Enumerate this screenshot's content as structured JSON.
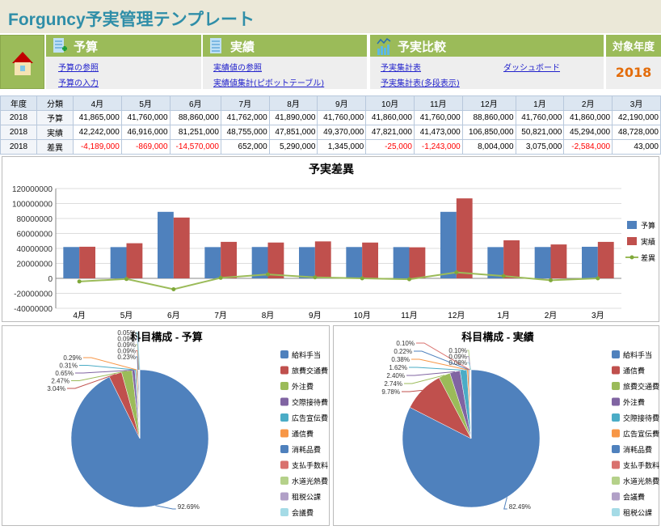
{
  "title": "Forguncy予実管理テンプレート",
  "nav": {
    "budget": {
      "title": "予算",
      "links": [
        "予算の参照",
        "予算の入力"
      ]
    },
    "actual": {
      "title": "実績",
      "links": [
        "実績値の参照",
        "実績値集計(ピボットテーブル)"
      ]
    },
    "compare": {
      "title": "予実比較",
      "links": [
        "予実集計表",
        "予実集計表(多段表示)",
        "ダッシュボード"
      ]
    },
    "year": {
      "label": "対象年度",
      "value": "2018"
    }
  },
  "table": {
    "headers": [
      "年度",
      "分類",
      "4月",
      "5月",
      "6月",
      "7月",
      "8月",
      "9月",
      "10月",
      "11月",
      "12月",
      "1月",
      "2月",
      "3月"
    ],
    "rows": [
      [
        "2018",
        "予算",
        "41,865,000",
        "41,760,000",
        "88,860,000",
        "41,762,000",
        "41,890,000",
        "41,760,000",
        "41,860,000",
        "41,760,000",
        "88,860,000",
        "41,760,000",
        "41,860,000",
        "42,190,000"
      ],
      [
        "2018",
        "実績",
        "42,242,000",
        "46,916,000",
        "81,251,000",
        "48,755,000",
        "47,851,000",
        "49,370,000",
        "47,821,000",
        "41,473,000",
        "106,850,000",
        "50,821,000",
        "45,294,000",
        "48,728,000"
      ],
      [
        "2018",
        "差異",
        "-4,189,000",
        "-869,000",
        "-14,570,000",
        "652,000",
        "5,290,000",
        "1,345,000",
        "-25,000",
        "-1,243,000",
        "8,004,000",
        "3,075,000",
        "-2,584,000",
        "43,000"
      ]
    ]
  },
  "chart_data": [
    {
      "type": "bar",
      "title": "予実差異",
      "categories": [
        "4月",
        "5月",
        "6月",
        "7月",
        "8月",
        "9月",
        "10月",
        "11月",
        "12月",
        "1月",
        "2月",
        "3月"
      ],
      "ylim": [
        -40000000,
        120000000
      ],
      "yticks": [
        "120000000",
        "100000000",
        "80000000",
        "60000000",
        "40000000",
        "20000000",
        "0",
        "-20000000",
        "-40000000"
      ],
      "grid": true,
      "legend": "right",
      "series": [
        {
          "name": "予算",
          "kind": "bar",
          "color": "#4f81bd",
          "values": [
            41865000,
            41760000,
            88860000,
            41762000,
            41890000,
            41760000,
            41860000,
            41760000,
            88860000,
            41760000,
            41860000,
            42190000
          ]
        },
        {
          "name": "実績",
          "kind": "bar",
          "color": "#c0504d",
          "values": [
            42242000,
            46916000,
            81251000,
            48755000,
            47851000,
            49370000,
            47821000,
            41473000,
            106850000,
            50821000,
            45294000,
            48728000
          ]
        },
        {
          "name": "差異",
          "kind": "line",
          "color": "#9bbb59",
          "values": [
            -4189000,
            -869000,
            -14570000,
            652000,
            5290000,
            1345000,
            -25000,
            -1243000,
            8004000,
            3075000,
            -2584000,
            43000
          ]
        }
      ]
    },
    {
      "type": "pie",
      "title": "科目構成 - 予算",
      "legend": "right",
      "labels": [
        "給料手当",
        "旅費交通費",
        "外注費",
        "交際接待費",
        "広告宣伝費",
        "通信費",
        "消耗品費",
        "支払手数料",
        "水道光熱費",
        "租税公課",
        "会議費"
      ],
      "values": [
        92.69,
        3.04,
        2.47,
        0.65,
        0.31,
        0.29,
        0.23,
        0.09,
        0.09,
        0.09,
        0.05
      ],
      "value_labels": [
        "92.69%",
        "3.04%",
        "2.47%",
        "0.65%",
        "0.31%",
        "0.29%",
        "0.23%",
        "0.09%",
        "0.09%",
        "0.09%",
        "0.05%"
      ]
    },
    {
      "type": "pie",
      "title": "科目構成 - 実績",
      "legend": "right",
      "labels": [
        "給料手当",
        "通信費",
        "旅費交通費",
        "外注費",
        "交際接待費",
        "広告宣伝費",
        "消耗品費",
        "支払手数料",
        "水道光熱費",
        "会議費",
        "租税公課"
      ],
      "values": [
        82.49,
        9.78,
        2.74,
        2.4,
        1.62,
        0.38,
        0.22,
        0.1,
        0.1,
        0.09,
        0.08
      ],
      "value_labels": [
        "82.49%",
        "9.78%",
        "2.74%",
        "2.40%",
        "1.62%",
        "0.38%",
        "0.22%",
        "0.10%",
        "0.10%",
        "0.09%",
        "0.08%"
      ]
    }
  ],
  "pie_colors": [
    "#4f81bd",
    "#c0504d",
    "#9bbb59",
    "#8064a2",
    "#4bacc6",
    "#f79646",
    "#4f81bd",
    "#d9716e",
    "#b5d18a",
    "#b1a0c7",
    "#a5dbe6"
  ]
}
